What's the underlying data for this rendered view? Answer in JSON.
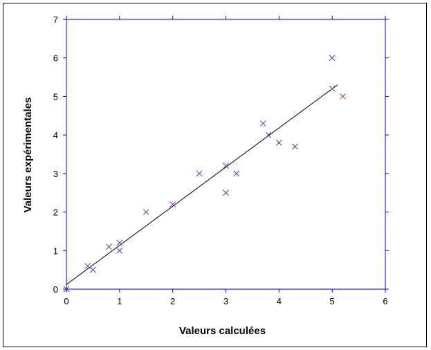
{
  "chart_data": {
    "type": "scatter",
    "title": "",
    "xlabel": "Valeurs calculées",
    "ylabel": "Valeurs expérimentales",
    "xlim": [
      0,
      6
    ],
    "ylim": [
      0,
      7
    ],
    "xticks": [
      "0",
      "1",
      "2",
      "3",
      "4",
      "5",
      "6"
    ],
    "yticks": [
      "0",
      "1",
      "2",
      "3",
      "4",
      "5",
      "6",
      "7"
    ],
    "grid": false,
    "legend": "none",
    "marker": "x",
    "colors": {
      "points": "#7030a0",
      "axes": "#0000cc",
      "fit_line": "#000000"
    },
    "series": [
      {
        "x": [
          0,
          0.4,
          0.5,
          0.8,
          1.0,
          1.0,
          1.5,
          2.0,
          2.5,
          3.0,
          3.0,
          3.2,
          3.7,
          3.8,
          4.0,
          4.3,
          5.0,
          5.0,
          5.2
        ],
        "y": [
          0,
          0.6,
          0.5,
          1.1,
          1.0,
          1.2,
          2.0,
          2.2,
          3.0,
          2.5,
          3.2,
          3.0,
          4.3,
          4.0,
          3.8,
          3.7,
          6.0,
          5.2,
          5.0
        ]
      }
    ],
    "fit_line": {
      "x": [
        0,
        5.1
      ],
      "y": [
        0.12,
        5.3
      ]
    }
  }
}
